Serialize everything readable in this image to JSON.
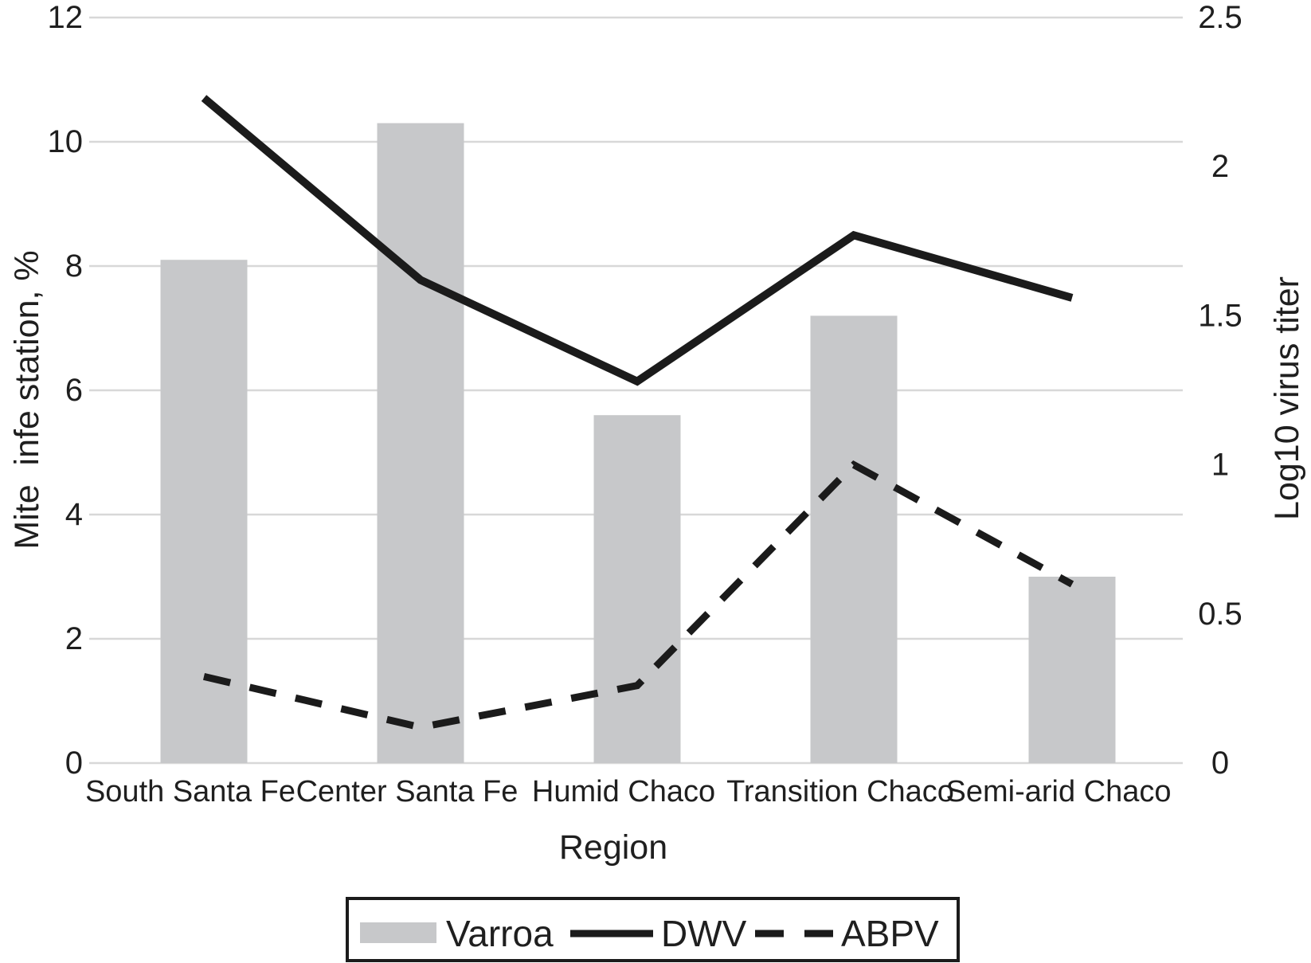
{
  "chart_data": {
    "type": "combo-bar-line",
    "title": "",
    "categories": [
      "South Santa Fe",
      "Center Santa Fe",
      "Humid Chaco",
      "Transition Chaco",
      "Semi-arid Chaco"
    ],
    "series": [
      {
        "name": "Varroa",
        "kind": "bar",
        "axis": "left",
        "values": [
          8.1,
          10.3,
          5.6,
          7.2,
          3.0
        ]
      },
      {
        "name": "DWV",
        "kind": "line",
        "line_style": "solid",
        "axis": "right",
        "values": [
          2.23,
          1.62,
          1.28,
          1.77,
          1.56
        ]
      },
      {
        "name": "ABPV",
        "kind": "line",
        "line_style": "dashed",
        "axis": "right",
        "values": [
          0.29,
          0.12,
          0.26,
          1.0,
          0.6
        ]
      }
    ],
    "xlabel": "Region",
    "ylabel_left": "Mite  infe station, %",
    "ylabel_right": "Log10 virus titer",
    "left_axis": {
      "min": 0,
      "max": 12,
      "tick_labels": [
        "0",
        "2",
        "4",
        "6",
        "8",
        "10",
        "12"
      ]
    },
    "right_axis": {
      "min": 0,
      "max": 2.5,
      "tick_labels": [
        "0",
        "0.5",
        "1",
        "1.5",
        "2",
        "2.5"
      ]
    },
    "grid": true,
    "legend": {
      "position": "bottom",
      "items": [
        "Varroa",
        "DWV",
        "ABPV"
      ]
    },
    "colors": {
      "bar": "#c7c8ca",
      "line": "#1b1b1b",
      "grid": "#d8d8d8",
      "text": "#1f1f1f",
      "background": "#ffffff"
    }
  }
}
